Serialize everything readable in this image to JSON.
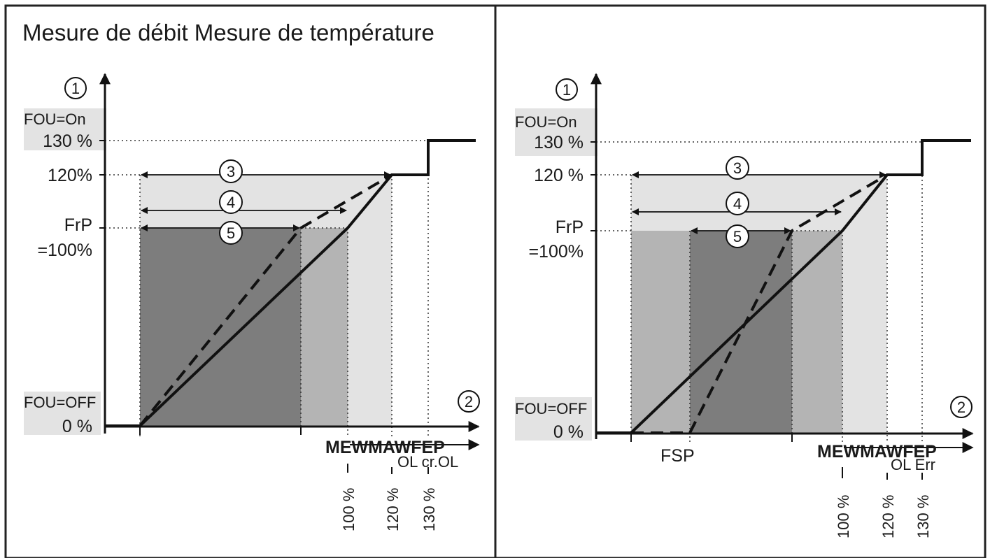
{
  "title": "Mesure de débit Mesure de température",
  "colors": {
    "dark_fill": "#7d7d7d",
    "mid_fill": "#b4b4b4",
    "light_fill": "#e3e3e3",
    "line": "#111111"
  },
  "left_panel": {
    "y_axis_marker": "1",
    "x_axis_marker": "2",
    "fou_on": "FOU=On",
    "y130": "130 %",
    "y120": "120%",
    "frp": "FrP",
    "y100": "=100%",
    "fou_off": "FOU=OFF",
    "y0": "0 %",
    "range_markers": [
      "3",
      "4",
      "5"
    ],
    "x_labels": "MEWMAWFEP",
    "x_sublabels": "OL cr.OL",
    "x_ticks": [
      "100 %",
      "120 %",
      "130 %"
    ]
  },
  "right_panel": {
    "y_axis_marker": "1",
    "x_axis_marker": "2",
    "fou_on": "FOU=On",
    "y130": "130 %",
    "y120": "120 %",
    "frp": "FrP",
    "y100": "=100%",
    "fou_off": "FOU=OFF",
    "y0": "0 %",
    "range_markers": [
      "3",
      "4",
      "5"
    ],
    "fsp": "FSP",
    "x_labels": "MEWMAWFEP",
    "x_sublabels": "OL Err",
    "x_ticks": [
      "100 %",
      "120 %",
      "130 %"
    ]
  }
}
